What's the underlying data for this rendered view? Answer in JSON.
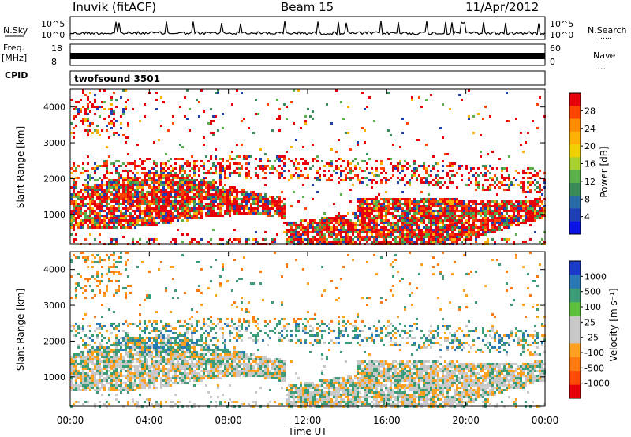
{
  "header": {
    "station": "Inuvik (fitACF)",
    "beam": "Beam 15",
    "date": "11/Apr/2012"
  },
  "top_panels": {
    "nsky_label": "N.Sky",
    "nsearch_label": "N.Search",
    "nsearch_dots": "……",
    "noise_ticks": [
      "10^5",
      "10^0"
    ],
    "freq_label": "Freq.",
    "freq_unit": "[MHz]",
    "freq_ticks": [
      "18",
      "8"
    ],
    "nave_ticks": [
      "60",
      "0"
    ],
    "nave_label": "Nave",
    "nave_dots": "....",
    "cpid_label": "CPID",
    "cpid_text": "twofsound 3501"
  },
  "chart_data": [
    {
      "type": "heatmap",
      "name": "power",
      "ylabel": "Slant Range [km]",
      "xlabel": "",
      "xlim_hours": [
        0,
        24
      ],
      "ylim_km": [
        180,
        4500
      ],
      "yticks": [
        "1000",
        "2000",
        "3000",
        "4000"
      ],
      "colorbar": {
        "label": "Power [dB]",
        "ticks": [
          "28",
          "24",
          "20",
          "16",
          "12",
          "8",
          "4"
        ],
        "colors": [
          "#e8000b",
          "#ff4500",
          "#ff8c00",
          "#ffb000",
          "#f0d000",
          "#a8d030",
          "#5cb04a",
          "#3c8c5a",
          "#2a6ca8",
          "#1f3fb4",
          "#0a14e6"
        ]
      }
    },
    {
      "type": "heatmap",
      "name": "velocity",
      "ylabel": "Slant Range [km]",
      "xlabel": "Time UT",
      "xlim_hours": [
        0,
        24
      ],
      "ylim_km": [
        180,
        4500
      ],
      "yticks": [
        "1000",
        "2000",
        "3000",
        "4000"
      ],
      "xticks": [
        "00:00",
        "04:00",
        "08:00",
        "12:00",
        "16:00",
        "20:00",
        "00:00"
      ],
      "colorbar": {
        "label": "Velocity [m s⁻¹]",
        "ticks": [
          "1000",
          "500",
          "100",
          "25",
          "-25",
          "-100",
          "-500",
          "-1000"
        ],
        "colors": [
          "#1a3cc8",
          "#2a78b4",
          "#3c9c78",
          "#5cc03c",
          "#c8c8c8",
          "#c8c8c8",
          "#ffa020",
          "#ff7a10",
          "#ff4a0a",
          "#e8000b"
        ]
      }
    }
  ]
}
